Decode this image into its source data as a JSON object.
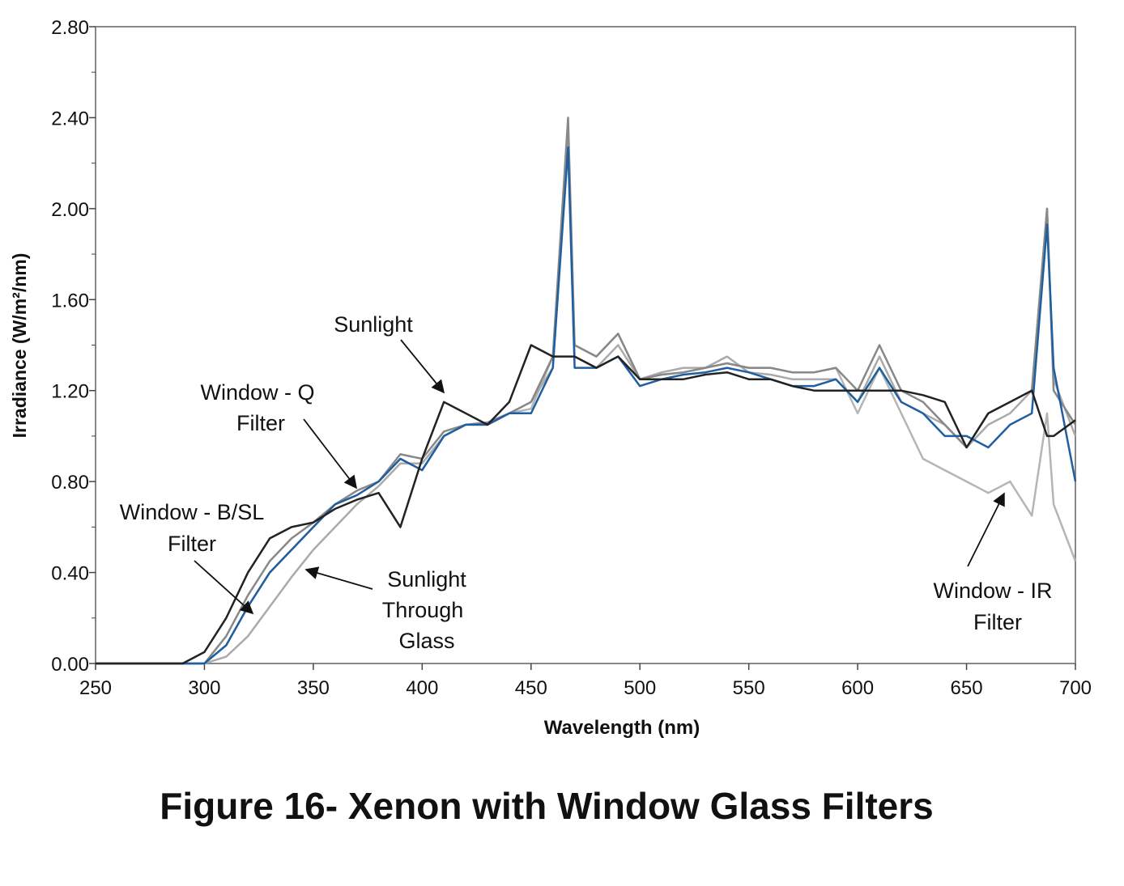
{
  "chart_data": {
    "type": "line",
    "title": "Figure 16- Xenon with Window Glass Filters",
    "x_label": "Wavelength (nm)",
    "y_label": "Irradiance (W/m²/nm)",
    "x": [
      250,
      260,
      270,
      280,
      290,
      300,
      310,
      320,
      330,
      340,
      350,
      360,
      370,
      380,
      390,
      400,
      410,
      420,
      430,
      440,
      450,
      460,
      467,
      470,
      480,
      490,
      500,
      510,
      520,
      530,
      540,
      550,
      560,
      570,
      580,
      590,
      600,
      610,
      620,
      630,
      640,
      650,
      660,
      670,
      680,
      687,
      690,
      700
    ],
    "series": [
      {
        "name": [
          "Sunlight"
        ],
        "color": "#222222",
        "values": [
          0,
          0,
          0,
          0,
          0,
          0.05,
          0.2,
          0.4,
          0.55,
          0.6,
          0.62,
          0.68,
          0.72,
          0.75,
          0.6,
          0.9,
          1.15,
          1.1,
          1.05,
          1.15,
          1.4,
          1.35,
          1.35,
          1.35,
          1.3,
          1.35,
          1.25,
          1.25,
          1.25,
          1.27,
          1.28,
          1.25,
          1.25,
          1.22,
          1.2,
          1.2,
          1.2,
          1.2,
          1.2,
          1.18,
          1.15,
          0.95,
          1.1,
          1.15,
          1.2,
          1.0,
          1.0,
          1.07
        ]
      },
      {
        "name": [
          "Window - Q",
          "Filter"
        ],
        "color": "#1f5fa0",
        "values": [
          0,
          0,
          0,
          0,
          0,
          0,
          0.08,
          0.25,
          0.4,
          0.5,
          0.6,
          0.7,
          0.74,
          0.8,
          0.9,
          0.85,
          1.0,
          1.05,
          1.05,
          1.1,
          1.1,
          1.3,
          2.27,
          1.3,
          1.3,
          1.35,
          1.22,
          1.25,
          1.27,
          1.28,
          1.3,
          1.28,
          1.25,
          1.22,
          1.22,
          1.25,
          1.15,
          1.3,
          1.15,
          1.1,
          1.0,
          1.0,
          0.95,
          1.05,
          1.1,
          1.93,
          1.3,
          0.8
        ]
      },
      {
        "name": [
          "Window - B/SL",
          "Filter"
        ],
        "color": "#888888",
        "values": [
          0,
          0,
          0,
          0,
          0,
          0,
          0.12,
          0.3,
          0.45,
          0.55,
          0.62,
          0.7,
          0.76,
          0.8,
          0.92,
          0.9,
          1.02,
          1.05,
          1.06,
          1.1,
          1.15,
          1.35,
          2.4,
          1.4,
          1.35,
          1.45,
          1.25,
          1.27,
          1.28,
          1.3,
          1.32,
          1.3,
          1.3,
          1.28,
          1.28,
          1.3,
          1.2,
          1.4,
          1.2,
          1.15,
          1.05,
          0.95,
          1.1,
          1.15,
          1.2,
          2.0,
          1.2,
          1.05
        ]
      },
      {
        "name": [
          "Sunlight",
          "Through",
          "Glass"
        ],
        "color": "#aaaaaa",
        "values": [
          0,
          0,
          0,
          0,
          0,
          0,
          0.03,
          0.12,
          0.25,
          0.38,
          0.5,
          0.6,
          0.7,
          0.78,
          0.88,
          0.88,
          1.0,
          1.05,
          1.05,
          1.1,
          1.15,
          1.3,
          2.3,
          1.35,
          1.3,
          1.4,
          1.25,
          1.28,
          1.3,
          1.3,
          1.35,
          1.28,
          1.27,
          1.25,
          1.25,
          1.25,
          1.15,
          1.35,
          1.15,
          1.1,
          1.05,
          0.95,
          1.05,
          1.1,
          1.2,
          2.0,
          1.25,
          1.0
        ]
      },
      {
        "name": [
          "Window - IR",
          "Filter"
        ],
        "color": "#b5b5b5",
        "values": [
          0,
          0,
          0,
          0,
          0,
          0,
          0.08,
          0.25,
          0.4,
          0.5,
          0.6,
          0.7,
          0.74,
          0.8,
          0.9,
          0.85,
          1.0,
          1.05,
          1.05,
          1.1,
          1.12,
          1.35,
          2.3,
          1.4,
          1.35,
          1.45,
          1.25,
          1.27,
          1.28,
          1.3,
          1.32,
          1.3,
          1.3,
          1.28,
          1.28,
          1.3,
          1.1,
          1.3,
          1.1,
          0.9,
          0.85,
          0.8,
          0.75,
          0.8,
          0.65,
          1.1,
          0.7,
          0.45
        ]
      }
    ],
    "xlim": [
      250,
      700
    ],
    "xticks": [
      250,
      300,
      350,
      400,
      450,
      500,
      550,
      600,
      650,
      700
    ],
    "ylim": [
      0,
      2.8
    ],
    "yticks": [
      {
        "value": 0,
        "label": "0.00"
      },
      {
        "value": 0.4,
        "label": "0.40"
      },
      {
        "value": 0.8,
        "label": "0.80"
      },
      {
        "value": 1.2,
        "label": "1.20"
      },
      {
        "value": 1.6,
        "label": "1.60"
      },
      {
        "value": 2.0,
        "label": "2.00"
      },
      {
        "value": 2.4,
        "label": "2.40"
      },
      {
        "value": 2.8,
        "label": "2.80"
      }
    ]
  }
}
